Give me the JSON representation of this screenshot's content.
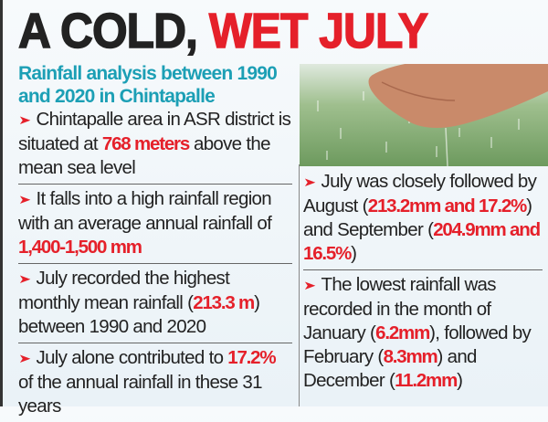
{
  "headline": {
    "part1": "A COLD, ",
    "part2": "WET JULY"
  },
  "subtitle": "Rainfall analysis between 1990 and 2020 in Chintapalle",
  "colors": {
    "accent_red": "#e5202a",
    "subtitle_teal": "#1c9fb5"
  },
  "bullet_icon": "arrowhead-right-icon",
  "photo": "hand-catching-rain",
  "left_bullets": [
    {
      "segments": [
        {
          "text": "Chintapalle area in ASR district is situated at ",
          "hl": false
        },
        {
          "text": "768 meters",
          "hl": true
        },
        {
          "text": " above the mean sea level",
          "hl": false
        }
      ]
    },
    {
      "segments": [
        {
          "text": "It falls into a high rainfall region with an average annual rainfall of ",
          "hl": false
        },
        {
          "text": "1,400-1,500 mm",
          "hl": true
        }
      ]
    },
    {
      "segments": [
        {
          "text": "July recorded the highest monthly mean rainfall (",
          "hl": false
        },
        {
          "text": "213.3 m",
          "hl": true
        },
        {
          "text": ") between 1990 and 2020",
          "hl": false
        }
      ]
    },
    {
      "segments": [
        {
          "text": "July alone contributed to ",
          "hl": false
        },
        {
          "text": "17.2%",
          "hl": true
        },
        {
          "text": " of the annual rainfall in these 31 years",
          "hl": false
        }
      ]
    }
  ],
  "right_bullets": [
    {
      "segments": [
        {
          "text": "July was closely followed by August (",
          "hl": false
        },
        {
          "text": "213.2mm and 17.2%",
          "hl": true
        },
        {
          "text": ") and September (",
          "hl": false
        },
        {
          "text": "204.9mm and 16.5%",
          "hl": true
        },
        {
          "text": ")",
          "hl": false
        }
      ]
    },
    {
      "segments": [
        {
          "text": "The lowest rainfall was recorded in the month of January (",
          "hl": false
        },
        {
          "text": "6.2mm",
          "hl": true
        },
        {
          "text": "), followed by February (",
          "hl": false
        },
        {
          "text": "8.3mm",
          "hl": true
        },
        {
          "text": ") and December (",
          "hl": false
        },
        {
          "text": "11.2mm",
          "hl": true
        },
        {
          "text": ")",
          "hl": false
        }
      ]
    }
  ]
}
